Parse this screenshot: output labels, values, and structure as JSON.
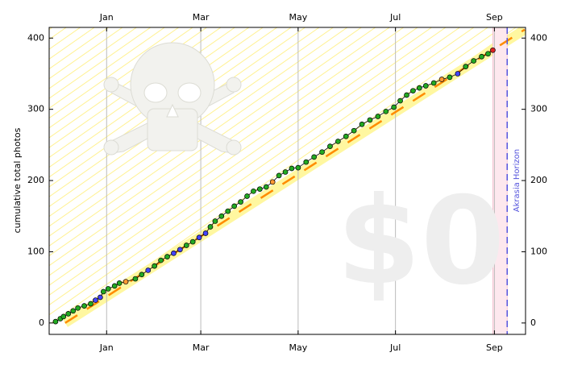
{
  "chart_data": {
    "type": "scatter",
    "ylabel": "cumulative total photos",
    "watermark": "$0",
    "horizon_label": "Akrasia Horizon",
    "xlim": [
      -36,
      262.5
    ],
    "ylim": [
      -16,
      415
    ],
    "xticks": [
      {
        "value": 0,
        "label": "Jan"
      },
      {
        "value": 59,
        "label": "Mar"
      },
      {
        "value": 120,
        "label": "May"
      },
      {
        "value": 181,
        "label": "Jul"
      },
      {
        "value": 243,
        "label": "Sep"
      }
    ],
    "yticks": [
      0,
      100,
      200,
      300,
      400
    ],
    "grid": true,
    "today": 242,
    "akrasia_horizon": 251,
    "road": {
      "color": "#ff8c00",
      "x": [
        -26,
        262
      ],
      "values": [
        0,
        412
      ]
    },
    "points": {
      "x": [
        -32,
        -29,
        -27,
        -24,
        -21,
        -18,
        -14,
        -10,
        -7,
        -4,
        -2,
        1,
        5,
        8,
        12,
        18,
        22,
        26,
        30,
        34,
        38,
        42,
        46,
        50,
        54,
        58,
        62,
        65,
        68,
        72,
        76,
        80,
        84,
        88,
        92,
        96,
        100,
        104,
        108,
        112,
        116,
        120,
        125,
        130,
        135,
        140,
        145,
        150,
        155,
        160,
        165,
        170,
        175,
        180,
        184,
        188,
        192,
        196,
        200,
        205,
        210,
        215,
        220,
        225,
        230,
        235,
        239,
        242
      ],
      "values": [
        2,
        6,
        9,
        13,
        17,
        21,
        24,
        27,
        32,
        36,
        44,
        48,
        52,
        56,
        58,
        62,
        68,
        74,
        80,
        88,
        93,
        98,
        103,
        109,
        114,
        120,
        126,
        135,
        143,
        150,
        157,
        164,
        170,
        178,
        185,
        188,
        191,
        198,
        207,
        212,
        217,
        218,
        226,
        233,
        240,
        248,
        255,
        262,
        270,
        279,
        285,
        290,
        297,
        303,
        312,
        320,
        326,
        330,
        333,
        337,
        342,
        345,
        350,
        360,
        368,
        374,
        378,
        383
      ],
      "colors": [
        "#22aa22",
        "#22aa22",
        "#22aa22",
        "#22aa22",
        "#22aa22",
        "#22aa22",
        "#22aa22",
        "#22aa22",
        "#4444ff",
        "#4444ff",
        "#22aa22",
        "#22aa22",
        "#22aa22",
        "#22aa22",
        "#ff9933",
        "#22aa22",
        "#22aa22",
        "#4444ff",
        "#22aa22",
        "#22aa22",
        "#22aa22",
        "#4444ff",
        "#4444ff",
        "#22aa22",
        "#22aa22",
        "#4444ff",
        "#4444ff",
        "#22aa22",
        "#22aa22",
        "#22aa22",
        "#22aa22",
        "#22aa22",
        "#22aa22",
        "#22aa22",
        "#22aa22",
        "#22aa22",
        "#22aa22",
        "#ff9933",
        "#22aa22",
        "#22aa22",
        "#22aa22",
        "#22aa22",
        "#22aa22",
        "#22aa22",
        "#22aa22",
        "#22aa22",
        "#22aa22",
        "#22aa22",
        "#22aa22",
        "#22aa22",
        "#22aa22",
        "#22aa22",
        "#22aa22",
        "#22aa22",
        "#22aa22",
        "#22aa22",
        "#22aa22",
        "#22aa22",
        "#22aa22",
        "#22aa22",
        "#ff9933",
        "#22aa22",
        "#4444ff",
        "#22aa22",
        "#22aa22",
        "#22aa22",
        "#22aa22",
        "#dd2222"
      ]
    }
  }
}
